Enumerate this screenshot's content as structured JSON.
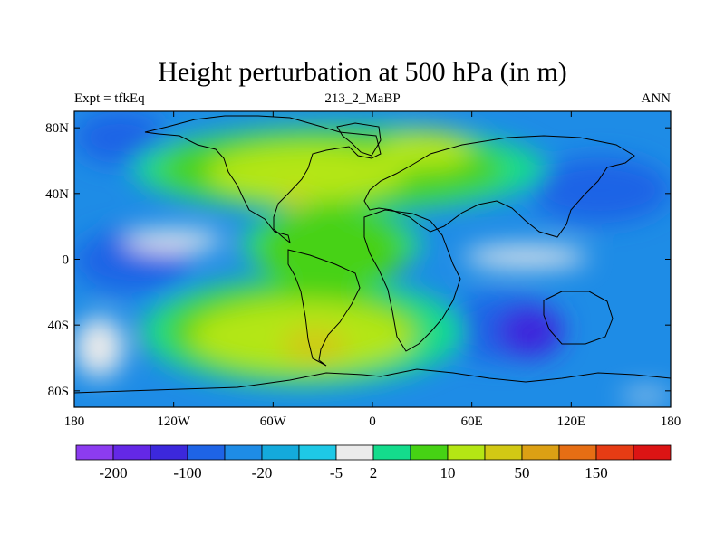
{
  "chart_data": {
    "type": "heatmap",
    "title": "Height perturbation at 500 hPa (in m)",
    "subtitle_left": "Expt = tfkEq",
    "subtitle_center": "213_2_MaBP",
    "subtitle_right": "ANN",
    "x_range": [
      -180,
      180
    ],
    "y_range": [
      -90,
      90
    ],
    "x_ticks": [
      {
        "value": -180,
        "label": "180"
      },
      {
        "value": -120,
        "label": "120W"
      },
      {
        "value": -60,
        "label": "60W"
      },
      {
        "value": 0,
        "label": "0"
      },
      {
        "value": 60,
        "label": "60E"
      },
      {
        "value": 120,
        "label": "120E"
      },
      {
        "value": 180,
        "label": "180"
      }
    ],
    "y_ticks": [
      {
        "value": 80,
        "label": "80N"
      },
      {
        "value": 40,
        "label": "40N"
      },
      {
        "value": 0,
        "label": "0"
      },
      {
        "value": -40,
        "label": "40S"
      },
      {
        "value": -80,
        "label": "80S"
      }
    ],
    "colorbar": {
      "colors": [
        "#8c3cf0",
        "#6428e6",
        "#3c28dc",
        "#1e64e6",
        "#1e8ce6",
        "#14aadc",
        "#1ec8e6",
        "#ebebeb",
        "#14dc8c",
        "#46d214",
        "#b4e614",
        "#d2c814",
        "#dca014",
        "#e66e14",
        "#e63c14",
        "#dc1414"
      ],
      "tick_labels": [
        "-200",
        "-100",
        "-20",
        "-5",
        "2",
        "10",
        "50",
        "150"
      ],
      "tick_boundary_index": [
        1,
        3,
        5,
        7,
        8,
        10,
        12,
        14
      ]
    },
    "field_regions": [
      {
        "level": 4,
        "lon": [
          -180,
          180
        ],
        "lat": [
          -90,
          90
        ]
      },
      {
        "level": 3,
        "lon": [
          -180,
          -110
        ],
        "lat": [
          -20,
          18
        ]
      },
      {
        "level": 3,
        "lon": [
          -180,
          -125
        ],
        "lat": [
          58,
          90
        ]
      },
      {
        "level": 3,
        "lon": [
          95,
          180
        ],
        "lat": [
          22,
          62
        ]
      },
      {
        "level": 3,
        "lon": [
          40,
          115
        ],
        "lat": [
          -62,
          -22
        ]
      },
      {
        "level": 2,
        "lon": [
          75,
          115
        ],
        "lat": [
          -60,
          -28
        ]
      },
      {
        "level": 8,
        "lon": [
          -145,
          105
        ],
        "lat": [
          28,
          82
        ]
      },
      {
        "level": 8,
        "lon": [
          -140,
          55
        ],
        "lat": [
          -78,
          -10
        ]
      },
      {
        "level": 8,
        "lon": [
          -80,
          30
        ],
        "lat": [
          -12,
          30
        ]
      },
      {
        "level": 9,
        "lon": [
          -130,
          80
        ],
        "lat": [
          32,
          78
        ]
      },
      {
        "level": 9,
        "lon": [
          -125,
          30
        ],
        "lat": [
          -72,
          -15
        ]
      },
      {
        "level": 9,
        "lon": [
          -70,
          20
        ],
        "lat": [
          -20,
          32
        ]
      },
      {
        "level": 10,
        "lon": [
          -100,
          20
        ],
        "lat": [
          35,
          70
        ]
      },
      {
        "level": 10,
        "lon": [
          -110,
          25
        ],
        "lat": [
          -68,
          -25
        ]
      },
      {
        "level": 10,
        "lon": [
          5,
          60
        ],
        "lat": [
          55,
          78
        ]
      },
      {
        "level": 11,
        "lon": [
          -55,
          -15
        ],
        "lat": [
          -62,
          -42
        ]
      },
      {
        "level": 11,
        "lon": [
          -55,
          -40
        ],
        "lat": [
          30,
          42
        ]
      },
      {
        "level": 7,
        "lon": [
          -150,
          -90
        ],
        "lat": [
          5,
          18
        ]
      },
      {
        "level": 7,
        "lon": [
          55,
          130
        ],
        "lat": [
          -5,
          8
        ]
      },
      {
        "level": 7,
        "lon": [
          -180,
          -150
        ],
        "lat": [
          -72,
          -35
        ]
      },
      {
        "level": 7,
        "lon": [
          150,
          180
        ],
        "lat": [
          -86,
          -80
        ]
      }
    ]
  }
}
